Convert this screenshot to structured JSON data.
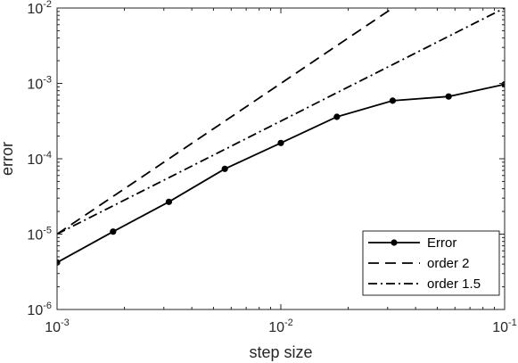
{
  "chart_data": {
    "type": "line",
    "x_scale": "log",
    "y_scale": "log",
    "xlabel": "step size",
    "ylabel": "error",
    "xlim": [
      0.001,
      0.1
    ],
    "ylim": [
      1e-06,
      0.01
    ],
    "grid": false,
    "legend_position": "bottom-right",
    "x_ticks": [
      {
        "base": "10",
        "exp": "-3"
      },
      {
        "base": "10",
        "exp": "-2"
      },
      {
        "base": "10",
        "exp": "-1"
      }
    ],
    "y_ticks": [
      {
        "base": "10",
        "exp": "-6"
      },
      {
        "base": "10",
        "exp": "-5"
      },
      {
        "base": "10",
        "exp": "-4"
      },
      {
        "base": "10",
        "exp": "-3"
      },
      {
        "base": "10",
        "exp": "-2"
      }
    ],
    "series": [
      {
        "name": "Error",
        "style": "solid-marker",
        "color": "#000000",
        "x": [
          0.001,
          0.00178,
          0.00316,
          0.00562,
          0.01,
          0.0178,
          0.0316,
          0.0562,
          0.1
        ],
        "y": [
          4.2e-06,
          1.08e-05,
          2.68e-05,
          7.35e-05,
          0.000162,
          0.00036,
          0.00059,
          0.00067,
          0.00097
        ]
      },
      {
        "name": "order 2",
        "style": "dashed",
        "color": "#000000",
        "x": [
          0.001,
          0.1
        ],
        "y": [
          1e-05,
          0.1
        ]
      },
      {
        "name": "order 1.5",
        "style": "dashdot",
        "color": "#000000",
        "x": [
          0.001,
          0.1
        ],
        "y": [
          1e-05,
          0.01
        ]
      }
    ]
  }
}
